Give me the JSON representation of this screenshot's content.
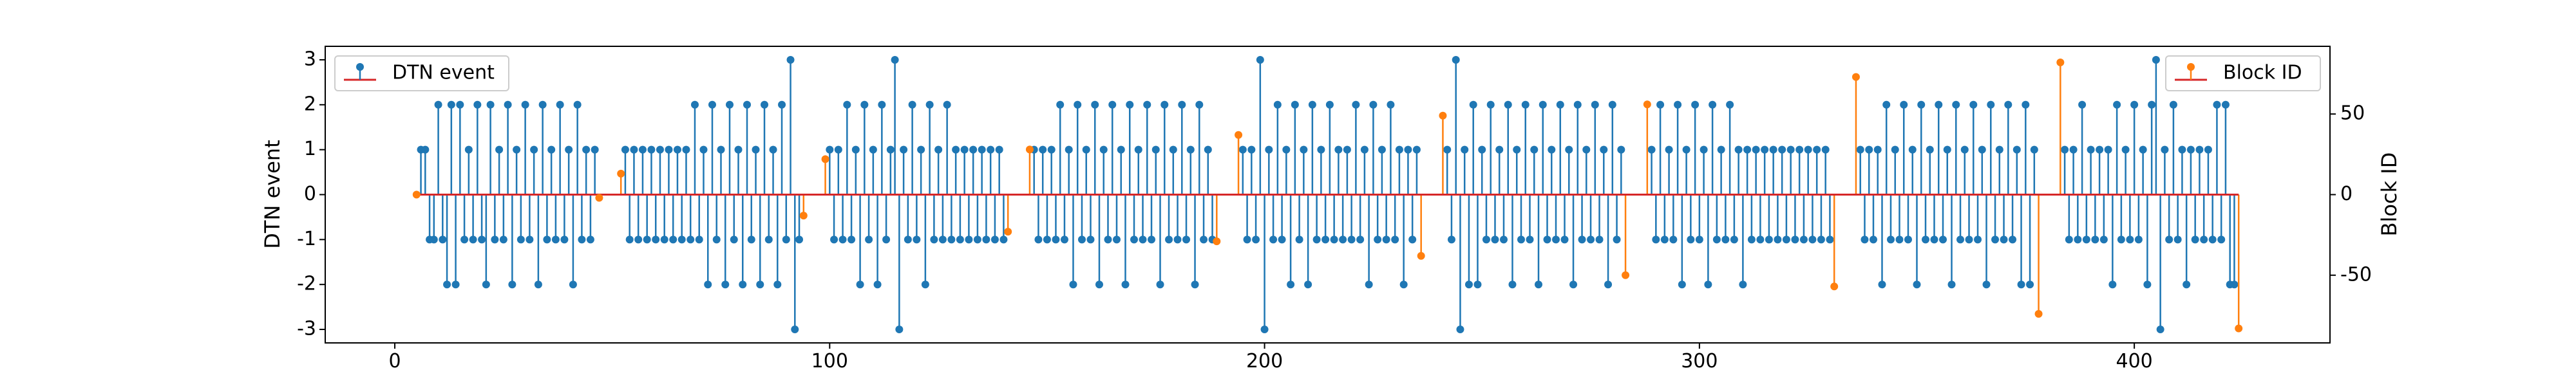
{
  "chart_data": {
    "type": "stem",
    "y_label": "DTN event",
    "y2_label": "Block ID",
    "xlim": [
      -16,
      445
    ],
    "ylim": [
      -3.3,
      3.3
    ],
    "y2lim": [
      -92,
      92
    ],
    "xticks": [
      0,
      100,
      200,
      300,
      400
    ],
    "yticks": [
      -3,
      -2,
      -1,
      0,
      1,
      2,
      3
    ],
    "y2ticks": [
      -50,
      0,
      50
    ],
    "baseline_color": "#d62728",
    "series": [
      {
        "name": "DTN event",
        "color": "#1f77b4",
        "legend_loc": "upper left",
        "x": [
          6,
          7,
          8,
          9,
          10,
          11,
          12,
          13,
          14,
          15,
          16,
          17,
          18,
          19,
          20,
          21,
          22,
          23,
          24,
          25,
          26,
          27,
          28,
          29,
          30,
          31,
          32,
          33,
          34,
          35,
          36,
          37,
          38,
          39,
          40,
          41,
          42,
          43,
          44,
          45,
          46,
          53,
          54,
          55,
          56,
          57,
          58,
          59,
          60,
          61,
          62,
          63,
          64,
          65,
          66,
          67,
          68,
          69,
          70,
          71,
          72,
          73,
          74,
          75,
          76,
          77,
          78,
          79,
          80,
          81,
          82,
          83,
          84,
          85,
          86,
          87,
          88,
          89,
          90,
          91,
          92,
          93,
          100,
          101,
          102,
          103,
          104,
          105,
          106,
          107,
          108,
          109,
          110,
          111,
          112,
          113,
          114,
          115,
          116,
          117,
          118,
          119,
          120,
          121,
          122,
          123,
          124,
          125,
          126,
          127,
          128,
          129,
          130,
          131,
          132,
          133,
          134,
          135,
          136,
          137,
          138,
          139,
          140,
          147,
          148,
          149,
          150,
          151,
          152,
          153,
          154,
          155,
          156,
          157,
          158,
          159,
          160,
          161,
          162,
          163,
          164,
          165,
          166,
          167,
          168,
          169,
          170,
          171,
          172,
          173,
          174,
          175,
          176,
          177,
          178,
          179,
          180,
          181,
          182,
          183,
          184,
          185,
          186,
          187,
          188,
          195,
          196,
          197,
          198,
          199,
          200,
          201,
          202,
          203,
          204,
          205,
          206,
          207,
          208,
          209,
          210,
          211,
          212,
          213,
          214,
          215,
          216,
          217,
          218,
          219,
          220,
          221,
          222,
          223,
          224,
          225,
          226,
          227,
          228,
          229,
          230,
          231,
          232,
          233,
          234,
          235,
          242,
          243,
          244,
          245,
          246,
          247,
          248,
          249,
          250,
          251,
          252,
          253,
          254,
          255,
          256,
          257,
          258,
          259,
          260,
          261,
          262,
          263,
          264,
          265,
          266,
          267,
          268,
          269,
          270,
          271,
          272,
          273,
          274,
          275,
          276,
          277,
          278,
          279,
          280,
          281,
          282,
          289,
          290,
          291,
          292,
          293,
          294,
          295,
          296,
          297,
          298,
          299,
          300,
          301,
          302,
          303,
          304,
          305,
          306,
          307,
          308,
          309,
          310,
          311,
          312,
          313,
          314,
          315,
          316,
          317,
          318,
          319,
          320,
          321,
          322,
          323,
          324,
          325,
          326,
          327,
          328,
          329,
          330,
          337,
          338,
          339,
          340,
          341,
          342,
          343,
          344,
          345,
          346,
          347,
          348,
          349,
          350,
          351,
          352,
          353,
          354,
          355,
          356,
          357,
          358,
          359,
          360,
          361,
          362,
          363,
          364,
          365,
          366,
          367,
          368,
          369,
          370,
          371,
          372,
          373,
          374,
          375,
          376,
          377,
          384,
          385,
          386,
          387,
          388,
          389,
          390,
          391,
          392,
          393,
          394,
          395,
          396,
          397,
          398,
          399,
          400,
          401,
          402,
          403,
          404,
          405,
          406,
          407,
          408,
          409,
          410,
          411,
          412,
          413,
          414,
          415,
          416,
          417,
          418,
          419,
          420,
          421,
          422,
          423
        ],
        "values": [
          1,
          1,
          -1,
          -1,
          2,
          -1,
          -2,
          2,
          -2,
          2,
          -1,
          1,
          -1,
          2,
          -1,
          -2,
          2,
          -1,
          1,
          -1,
          2,
          -2,
          1,
          -1,
          2,
          -1,
          1,
          -2,
          2,
          -1,
          1,
          -1,
          2,
          -1,
          1,
          -2,
          2,
          -1,
          1,
          -1,
          1,
          1,
          -1,
          1,
          -1,
          1,
          -1,
          1,
          -1,
          1,
          -1,
          1,
          -1,
          1,
          -1,
          1,
          -1,
          2,
          -1,
          1,
          -2,
          2,
          -1,
          1,
          -2,
          2,
          -1,
          1,
          -2,
          2,
          -1,
          1,
          -2,
          2,
          -1,
          1,
          -2,
          2,
          -1,
          3,
          -3,
          -1,
          1,
          -1,
          1,
          -1,
          2,
          -1,
          1,
          -2,
          2,
          -1,
          1,
          -2,
          2,
          -1,
          1,
          3,
          -3,
          1,
          -1,
          2,
          -1,
          1,
          -2,
          2,
          -1,
          1,
          -1,
          2,
          -1,
          1,
          -1,
          1,
          -1,
          1,
          -1,
          1,
          -1,
          1,
          -1,
          1,
          -1,
          1,
          -1,
          1,
          -1,
          1,
          -1,
          2,
          -1,
          1,
          -2,
          2,
          -1,
          1,
          -1,
          2,
          -2,
          1,
          -1,
          2,
          -1,
          1,
          -2,
          2,
          -1,
          1,
          -1,
          2,
          -1,
          1,
          -2,
          2,
          -1,
          1,
          -1,
          2,
          -1,
          1,
          -2,
          2,
          -1,
          1,
          -1,
          1,
          -1,
          1,
          -1,
          3,
          -3,
          1,
          -1,
          2,
          -1,
          1,
          -2,
          2,
          -1,
          1,
          -2,
          2,
          -1,
          1,
          -1,
          2,
          -1,
          1,
          -1,
          1,
          -1,
          2,
          -1,
          1,
          -2,
          2,
          -1,
          1,
          -1,
          2,
          -1,
          1,
          -2,
          1,
          -1,
          1,
          1,
          -1,
          3,
          -3,
          1,
          -2,
          2,
          -2,
          1,
          -1,
          2,
          -1,
          1,
          -1,
          2,
          -2,
          1,
          -1,
          2,
          -1,
          1,
          -2,
          2,
          -1,
          1,
          -1,
          2,
          -1,
          1,
          -2,
          2,
          -1,
          1,
          -1,
          2,
          -1,
          1,
          -2,
          2,
          -1,
          1,
          1,
          -1,
          2,
          -1,
          1,
          -1,
          2,
          -2,
          1,
          -1,
          2,
          -1,
          1,
          -2,
          2,
          -1,
          1,
          -1,
          2,
          -1,
          1,
          -2,
          1,
          -1,
          1,
          -1,
          1,
          -1,
          1,
          -1,
          1,
          -1,
          1,
          -1,
          1,
          -1,
          1,
          -1,
          1,
          -1,
          1,
          -1,
          1,
          -1,
          1,
          -1,
          1,
          -2,
          2,
          -1,
          1,
          -1,
          2,
          -1,
          1,
          -2,
          2,
          -1,
          1,
          -1,
          2,
          -1,
          1,
          -2,
          2,
          -1,
          1,
          -1,
          2,
          -1,
          1,
          -2,
          2,
          -1,
          1,
          -1,
          2,
          -1,
          1,
          -2,
          2,
          -2,
          1,
          1,
          -1,
          1,
          -1,
          2,
          -1,
          1,
          -1,
          1,
          -1,
          1,
          -2,
          2,
          -1,
          1,
          -1,
          2,
          -1,
          1,
          -2,
          2,
          3,
          -3,
          1,
          -1,
          2,
          -1,
          1,
          -2,
          1,
          -1,
          1,
          -1,
          1,
          -1,
          2,
          -1,
          2,
          -2,
          -2
        ]
      },
      {
        "name": "Block ID",
        "color": "#ff7f0e",
        "axis": "y2",
        "legend_loc": "upper right",
        "x": [
          5,
          47,
          52,
          94,
          99,
          141,
          146,
          189,
          194,
          236,
          241,
          283,
          288,
          331,
          336,
          378,
          383,
          424
        ],
        "values": [
          0,
          -2,
          13,
          -13,
          22,
          -23,
          28,
          -29,
          37,
          -38,
          49,
          -50,
          56,
          -57,
          73,
          -74,
          82,
          -83
        ]
      }
    ]
  }
}
